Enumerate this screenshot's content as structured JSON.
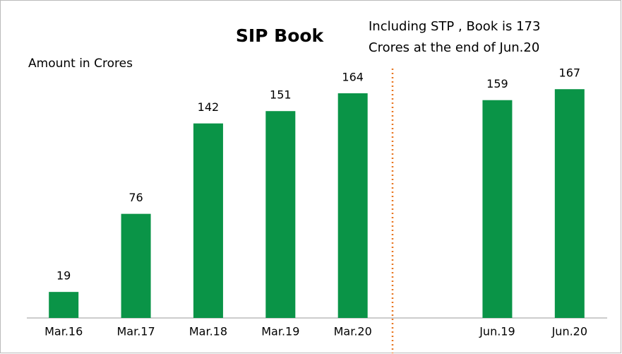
{
  "chart_data": {
    "type": "bar",
    "title": "SIP Book",
    "y_label": "Amount in Crores",
    "annotation": [
      "Including STP , Book is 173",
      "Crores at the end of Jun.20"
    ],
    "categories": [
      "Mar.16",
      "Mar.17",
      "Mar.18",
      "Mar.19",
      "Mar.20",
      null,
      "Jun.19",
      "Jun.20"
    ],
    "values": [
      19,
      76,
      142,
      151,
      164,
      null,
      159,
      167
    ],
    "color": "#0a9447",
    "ylim": [
      0,
      180
    ],
    "grid": false
  }
}
